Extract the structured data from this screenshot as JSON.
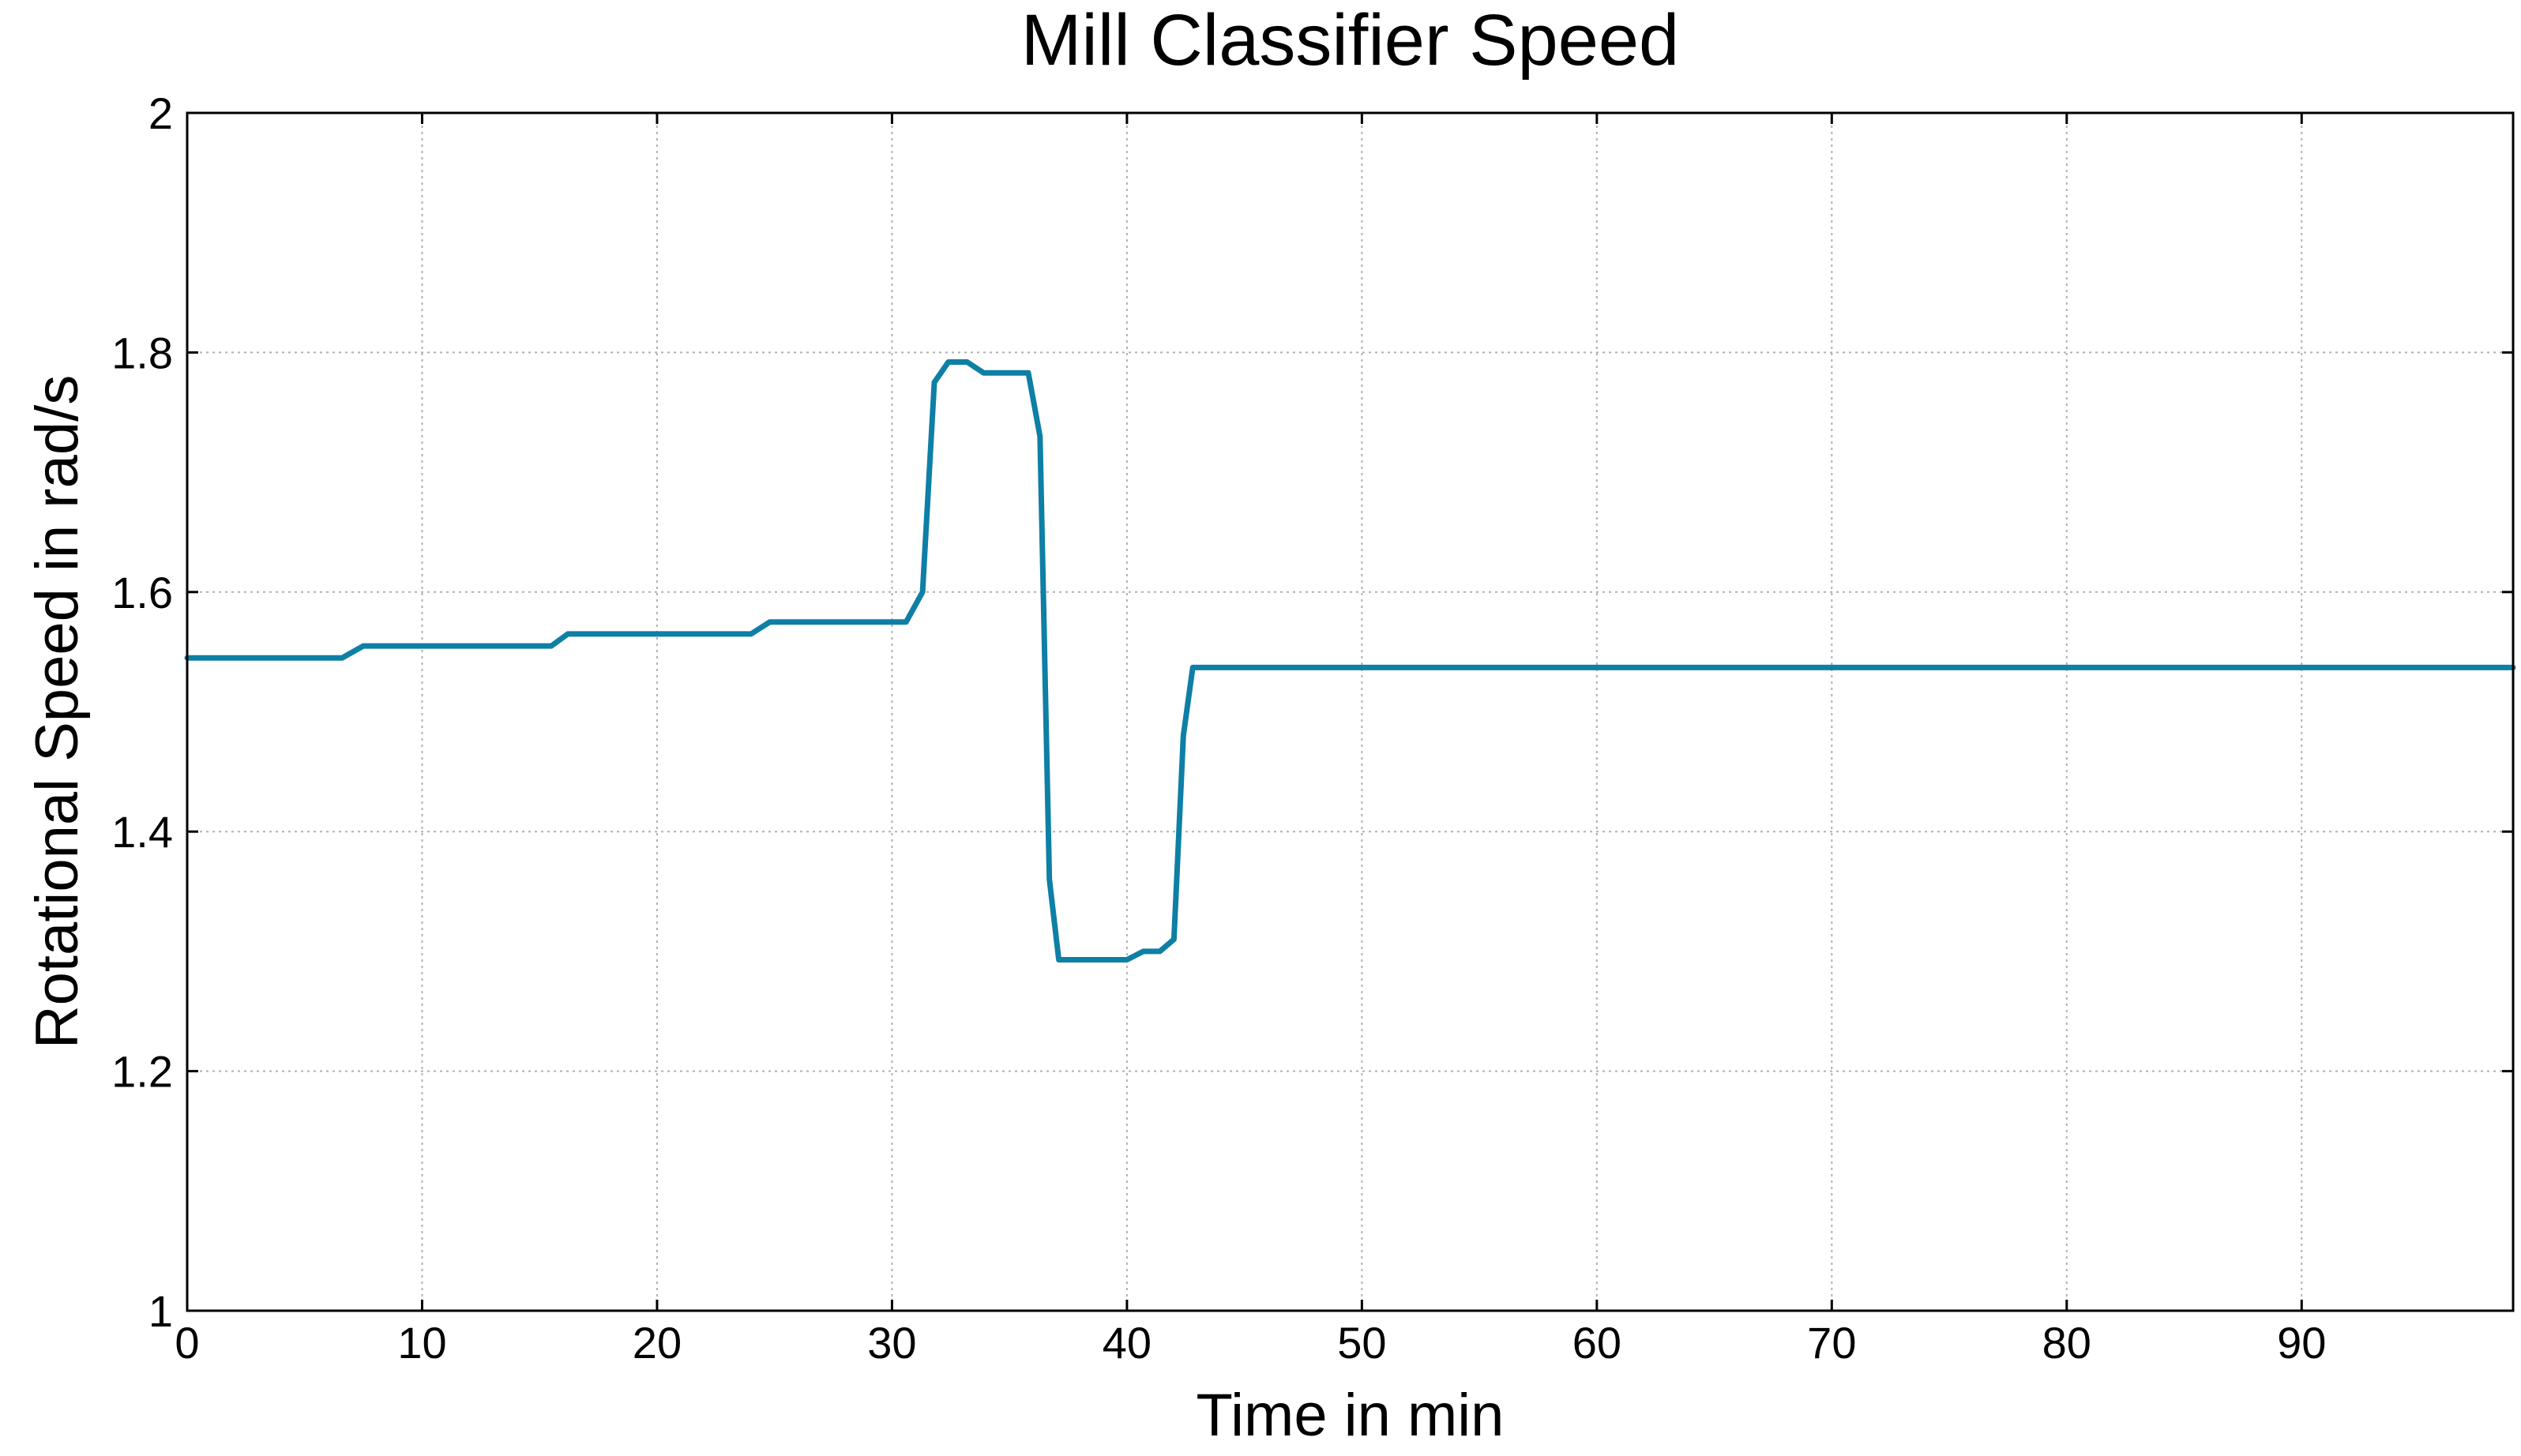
{
  "chart_data": {
    "type": "line",
    "title": "Mill Classifier Speed",
    "xlabel": "Time in min",
    "ylabel": "Rotational Speed in rad/s",
    "xlim": [
      0,
      99
    ],
    "ylim": [
      1,
      2
    ],
    "xticks": [
      0,
      10,
      20,
      30,
      40,
      50,
      60,
      70,
      80,
      90
    ],
    "yticks": [
      1,
      1.2,
      1.4,
      1.6,
      1.8,
      2
    ],
    "xtick_labels": [
      "0",
      "10",
      "20",
      "30",
      "40",
      "50",
      "60",
      "70",
      "80",
      "90"
    ],
    "ytick_labels": [
      "1",
      "1.2",
      "1.4",
      "1.6",
      "1.8",
      "2"
    ],
    "grid": true,
    "series": [
      {
        "color": "#0e7fa5",
        "x": [
          0,
          6.6,
          7.5,
          15.5,
          16.2,
          24,
          24.8,
          30.6,
          31.3,
          31.8,
          32.4,
          33.2,
          33.9,
          35.8,
          36.3,
          36.7,
          37.1,
          40,
          40.7,
          41.4,
          42,
          42.4,
          42.8,
          99
        ],
        "y": [
          1.545,
          1.545,
          1.555,
          1.555,
          1.565,
          1.565,
          1.575,
          1.575,
          1.6,
          1.775,
          1.792,
          1.792,
          1.783,
          1.783,
          1.73,
          1.36,
          1.293,
          1.293,
          1.3,
          1.3,
          1.31,
          1.48,
          1.537,
          1.537
        ]
      }
    ]
  }
}
